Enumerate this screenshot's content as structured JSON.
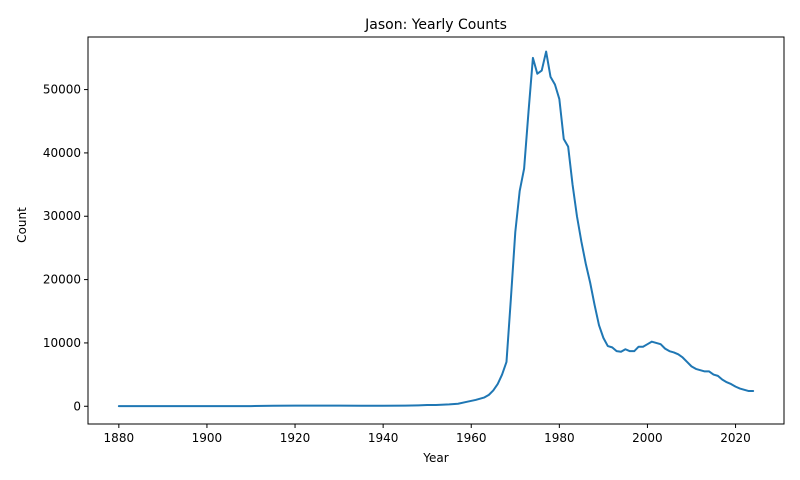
{
  "chart_data": {
    "type": "line",
    "title": "Jason: Yearly Counts",
    "xlabel": "Year",
    "ylabel": "Count",
    "xlim": [
      1873,
      2031
    ],
    "ylim": [
      -2800,
      58300
    ],
    "x_ticks": [
      1880,
      1900,
      1920,
      1940,
      1960,
      1980,
      2000,
      2020
    ],
    "y_ticks": [
      0,
      10000,
      20000,
      30000,
      40000,
      50000
    ],
    "grid": false,
    "legend": "none",
    "series": [
      {
        "color": "#1f77b4",
        "points": [
          [
            1880,
            20
          ],
          [
            1890,
            20
          ],
          [
            1900,
            15
          ],
          [
            1910,
            30
          ],
          [
            1915,
            80
          ],
          [
            1920,
            100
          ],
          [
            1925,
            110
          ],
          [
            1930,
            100
          ],
          [
            1935,
            90
          ],
          [
            1940,
            90
          ],
          [
            1945,
            110
          ],
          [
            1948,
            150
          ],
          [
            1950,
            200
          ],
          [
            1952,
            200
          ],
          [
            1955,
            300
          ],
          [
            1957,
            400
          ],
          [
            1959,
            700
          ],
          [
            1961,
            1000
          ],
          [
            1963,
            1400
          ],
          [
            1964,
            1800
          ],
          [
            1965,
            2500
          ],
          [
            1966,
            3500
          ],
          [
            1967,
            5000
          ],
          [
            1968,
            7000
          ],
          [
            1969,
            17000
          ],
          [
            1970,
            27500
          ],
          [
            1971,
            34000
          ],
          [
            1972,
            37500
          ],
          [
            1973,
            46500
          ],
          [
            1974,
            55000
          ],
          [
            1975,
            52500
          ],
          [
            1976,
            53000
          ],
          [
            1977,
            56000
          ],
          [
            1978,
            52000
          ],
          [
            1979,
            50800
          ],
          [
            1980,
            48500
          ],
          [
            1981,
            42200
          ],
          [
            1982,
            41000
          ],
          [
            1983,
            35000
          ],
          [
            1984,
            30000
          ],
          [
            1985,
            26000
          ],
          [
            1986,
            22500
          ],
          [
            1987,
            19500
          ],
          [
            1988,
            16000
          ],
          [
            1989,
            12800
          ],
          [
            1990,
            10800
          ],
          [
            1991,
            9500
          ],
          [
            1992,
            9300
          ],
          [
            1993,
            8700
          ],
          [
            1994,
            8600
          ],
          [
            1995,
            9000
          ],
          [
            1996,
            8700
          ],
          [
            1997,
            8700
          ],
          [
            1998,
            9400
          ],
          [
            1999,
            9400
          ],
          [
            2000,
            9800
          ],
          [
            2001,
            10200
          ],
          [
            2002,
            10000
          ],
          [
            2003,
            9800
          ],
          [
            2004,
            9100
          ],
          [
            2005,
            8700
          ],
          [
            2006,
            8500
          ],
          [
            2007,
            8200
          ],
          [
            2008,
            7700
          ],
          [
            2009,
            7000
          ],
          [
            2010,
            6300
          ],
          [
            2011,
            5900
          ],
          [
            2012,
            5700
          ],
          [
            2013,
            5500
          ],
          [
            2014,
            5500
          ],
          [
            2015,
            5000
          ],
          [
            2016,
            4800
          ],
          [
            2017,
            4200
          ],
          [
            2018,
            3800
          ],
          [
            2019,
            3500
          ],
          [
            2020,
            3100
          ],
          [
            2021,
            2800
          ],
          [
            2022,
            2600
          ],
          [
            2023,
            2400
          ],
          [
            2024,
            2400
          ]
        ]
      }
    ]
  }
}
